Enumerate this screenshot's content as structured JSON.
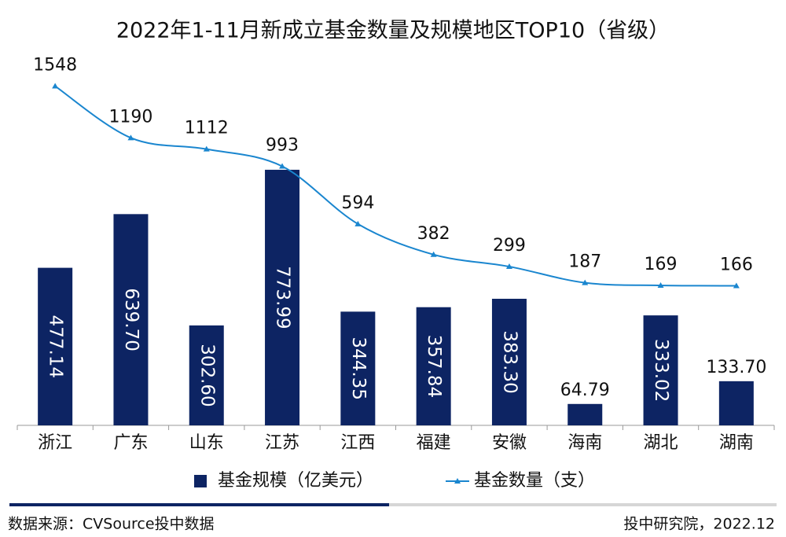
{
  "chart_data": {
    "type": "bar-line",
    "title": "2022年1-11月新成立基金数量及规模地区TOP10（省级）",
    "categories": [
      "浙江",
      "广东",
      "山东",
      "江苏",
      "江西",
      "福建",
      "安徽",
      "海南",
      "湖北",
      "湖南"
    ],
    "series": [
      {
        "name": "基金规模（亿美元）",
        "type": "bar",
        "color": "#0d2463",
        "values": [
          477.14,
          639.7,
          302.6,
          773.99,
          344.35,
          357.84,
          383.3,
          64.79,
          333.02,
          133.7
        ],
        "value_labels": [
          "477.14",
          "639.70",
          "302.60",
          "773.99",
          "344.35",
          "357.84",
          "383.30",
          "64.79",
          "333.02",
          "133.70"
        ]
      },
      {
        "name": "基金数量（支）",
        "type": "line",
        "axis": "y2",
        "color": "#1a86cf",
        "values": [
          1548,
          1190,
          1112,
          993,
          594,
          382,
          299,
          187,
          169,
          166
        ]
      }
    ],
    "ylim": [
      0,
      1050
    ],
    "y2lim": [
      -800,
      1600
    ],
    "legend": "bottom",
    "source": "数据来源：CVSource投中数据",
    "credit": "投中研究院，2022.12"
  }
}
